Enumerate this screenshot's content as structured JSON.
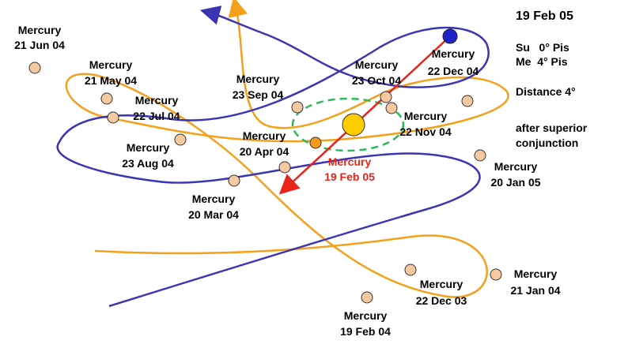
{
  "info": {
    "date": "19 Feb 05",
    "sun": "Su   0° Pis",
    "mercury": "Me  4° Pis",
    "distance": "Distance 4°",
    "note_line1": "after superior",
    "note_line2": "conjunction"
  },
  "labels": [
    {
      "name": "Mercury",
      "date": "21 Jun 04"
    },
    {
      "name": "Mercury",
      "date": "21 May 04"
    },
    {
      "name": "Mercury",
      "date": "22 Jul 04"
    },
    {
      "name": "Mercury",
      "date": "23 Aug 04"
    },
    {
      "name": "Mercury",
      "date": "23 Sep 04"
    },
    {
      "name": "Mercury",
      "date": "20 Apr 04"
    },
    {
      "name": "Mercury",
      "date": "20 Mar 04"
    },
    {
      "name": "Mercury",
      "date": "23 Oct 04"
    },
    {
      "name": "Mercury",
      "date": "22 Dec 04"
    },
    {
      "name": "Mercury",
      "date": "22 Nov 04"
    },
    {
      "name": "Mercury",
      "date": "19 Feb 05"
    },
    {
      "name": "Mercury",
      "date": "20 Jan 05"
    },
    {
      "name": "Mercury",
      "date": "22 Dec 03"
    },
    {
      "name": "Mercury",
      "date": "21 Jan 04"
    },
    {
      "name": "Mercury",
      "date": "19 Feb 04"
    }
  ]
}
